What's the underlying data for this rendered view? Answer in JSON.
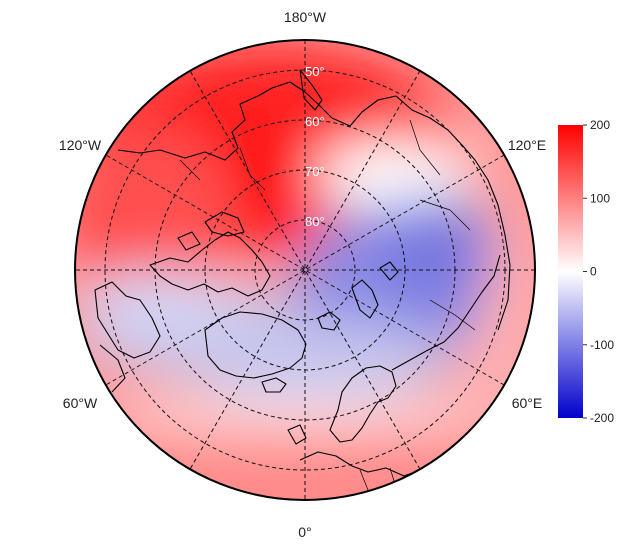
{
  "map": {
    "projection": "north-polar-stereographic",
    "lon_labels": {
      "top": "180°W",
      "upper_left": "120°W",
      "upper_right": "120°E",
      "lower_left": "60°W",
      "lower_right": "60°E",
      "bottom": "0°"
    },
    "lat_labels": [
      "50°",
      "60°",
      "70°",
      "80°"
    ],
    "graticule": "dashed",
    "colorbar": {
      "ticks": [
        "200",
        "100",
        "0",
        "-100",
        "-200"
      ],
      "range": [
        -200,
        200
      ],
      "colors": {
        "max": "#ff0000",
        "mid": "#ffffff",
        "min": "#0000cc"
      }
    }
  }
}
